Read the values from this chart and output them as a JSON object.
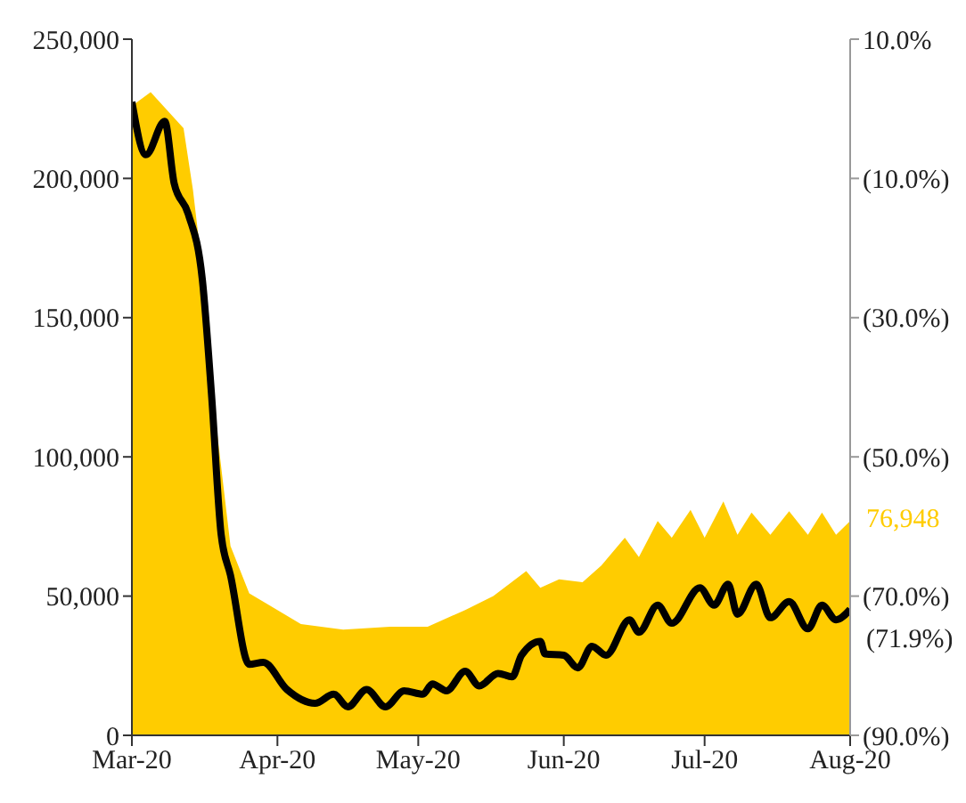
{
  "chart_data": {
    "type": "area",
    "xlim": [
      "2020-03-01",
      "2020-08-01"
    ],
    "xticks": [
      {
        "value": "2020-03-01",
        "label": "Mar-20"
      },
      {
        "value": "2020-04-01",
        "label": "Apr-20"
      },
      {
        "value": "2020-05-01",
        "label": "May-20"
      },
      {
        "value": "2020-06-01",
        "label": "Jun-20"
      },
      {
        "value": "2020-07-01",
        "label": "Jul-20"
      },
      {
        "value": "2020-08-01",
        "label": "Aug-20"
      }
    ],
    "ylim": [
      0,
      250000
    ],
    "yticks": [
      {
        "value": 0,
        "label": "0"
      },
      {
        "value": 50000,
        "label": "50,000"
      },
      {
        "value": 100000,
        "label": "100,000"
      },
      {
        "value": 150000,
        "label": "150,000"
      },
      {
        "value": 200000,
        "label": "200,000"
      },
      {
        "value": 250000,
        "label": "250,000"
      }
    ],
    "y2lim": [
      -90,
      10
    ],
    "y2ticks": [
      {
        "value": 10,
        "label": "10.0%"
      },
      {
        "value": -10,
        "label": "(10.0%)"
      },
      {
        "value": -30,
        "label": "(30.0%)"
      },
      {
        "value": -50,
        "label": "(50.0%)"
      },
      {
        "value": -70,
        "label": "(70.0%)"
      },
      {
        "value": -90,
        "label": "(90.0%)"
      }
    ],
    "grid": false,
    "legend": false,
    "series": [
      {
        "color": "#ffcc00",
        "x": [
          "2020-03-01",
          "2020-03-05",
          "2020-03-12",
          "2020-03-14",
          "2020-03-17",
          "2020-03-19",
          "2020-03-22",
          "2020-03-26",
          "2020-03-30",
          "2020-04-06",
          "2020-04-15",
          "2020-04-25",
          "2020-05-03",
          "2020-05-11",
          "2020-05-17",
          "2020-05-24",
          "2020-05-27",
          "2020-05-31",
          "2020-06-05",
          "2020-06-09",
          "2020-06-14",
          "2020-06-17",
          "2020-06-21",
          "2020-06-24",
          "2020-06-28",
          "2020-07-01",
          "2020-07-05",
          "2020-07-08",
          "2020-07-11",
          "2020-07-15",
          "2020-07-19",
          "2020-07-23",
          "2020-07-26",
          "2020-07-29",
          "2020-08-01"
        ],
        "values": [
          226000,
          231000,
          218000,
          196000,
          153000,
          111000,
          68000,
          51000,
          47000,
          40000,
          38000,
          39000,
          39000,
          45000,
          50000,
          59000,
          53000,
          56000,
          55000,
          61000,
          71000,
          64000,
          77000,
          71000,
          81000,
          71000,
          84000,
          72000,
          80000,
          72000,
          80500,
          72000,
          80000,
          72000,
          76948
        ],
        "value_labels": [
          null,
          null,
          null,
          null,
          null,
          null,
          null,
          null,
          null,
          null,
          null,
          null,
          null,
          null,
          null,
          null,
          null,
          null,
          null,
          null,
          null,
          null,
          null,
          null,
          null,
          null,
          null,
          null,
          null,
          null,
          null,
          null,
          null,
          null,
          "76,948"
        ]
      },
      {
        "type": "line",
        "axis": "y2",
        "color": "#000000",
        "x": [
          "2020-03-01",
          "2020-03-04",
          "2020-03-08",
          "2020-03-10",
          "2020-03-13",
          "2020-03-16",
          "2020-03-18",
          "2020-03-20",
          "2020-03-22",
          "2020-03-26",
          "2020-03-29",
          "2020-04-03",
          "2020-04-09",
          "2020-04-13",
          "2020-04-16",
          "2020-04-20",
          "2020-04-24",
          "2020-04-28",
          "2020-05-02",
          "2020-05-04",
          "2020-05-07",
          "2020-05-11",
          "2020-05-14",
          "2020-05-18",
          "2020-05-21",
          "2020-05-23",
          "2020-05-27",
          "2020-05-28",
          "2020-06-01",
          "2020-06-04",
          "2020-06-07",
          "2020-06-10",
          "2020-06-15",
          "2020-06-17",
          "2020-06-21",
          "2020-06-24",
          "2020-06-30",
          "2020-07-03",
          "2020-07-06",
          "2020-07-08",
          "2020-07-12",
          "2020-07-15",
          "2020-07-19",
          "2020-07-23",
          "2020-07-26",
          "2020-07-29",
          "2020-08-01"
        ],
        "values": [
          1.0,
          -6.6,
          -1.8,
          -10.7,
          -15.1,
          -24.5,
          -41.4,
          -61.1,
          -67.0,
          -79.8,
          -79.5,
          -83.4,
          -85.4,
          -84.1,
          -85.9,
          -83.4,
          -85.9,
          -83.6,
          -84.1,
          -82.6,
          -83.6,
          -80.8,
          -82.9,
          -81.1,
          -81.6,
          -78.5,
          -76.5,
          -78.3,
          -78.5,
          -80.3,
          -77.2,
          -78.5,
          -73.4,
          -75.2,
          -71.3,
          -73.9,
          -68.8,
          -71.3,
          -68.3,
          -72.6,
          -68.3,
          -73.1,
          -70.8,
          -74.7,
          -71.3,
          -73.4,
          -71.9
        ],
        "value_labels": [
          null,
          null,
          null,
          null,
          null,
          null,
          null,
          null,
          null,
          null,
          null,
          null,
          null,
          null,
          null,
          null,
          null,
          null,
          null,
          null,
          null,
          null,
          null,
          null,
          null,
          null,
          null,
          null,
          null,
          null,
          null,
          null,
          null,
          null,
          null,
          null,
          null,
          null,
          null,
          null,
          null,
          null,
          null,
          null,
          null,
          null,
          "(71.9%)"
        ]
      }
    ]
  }
}
